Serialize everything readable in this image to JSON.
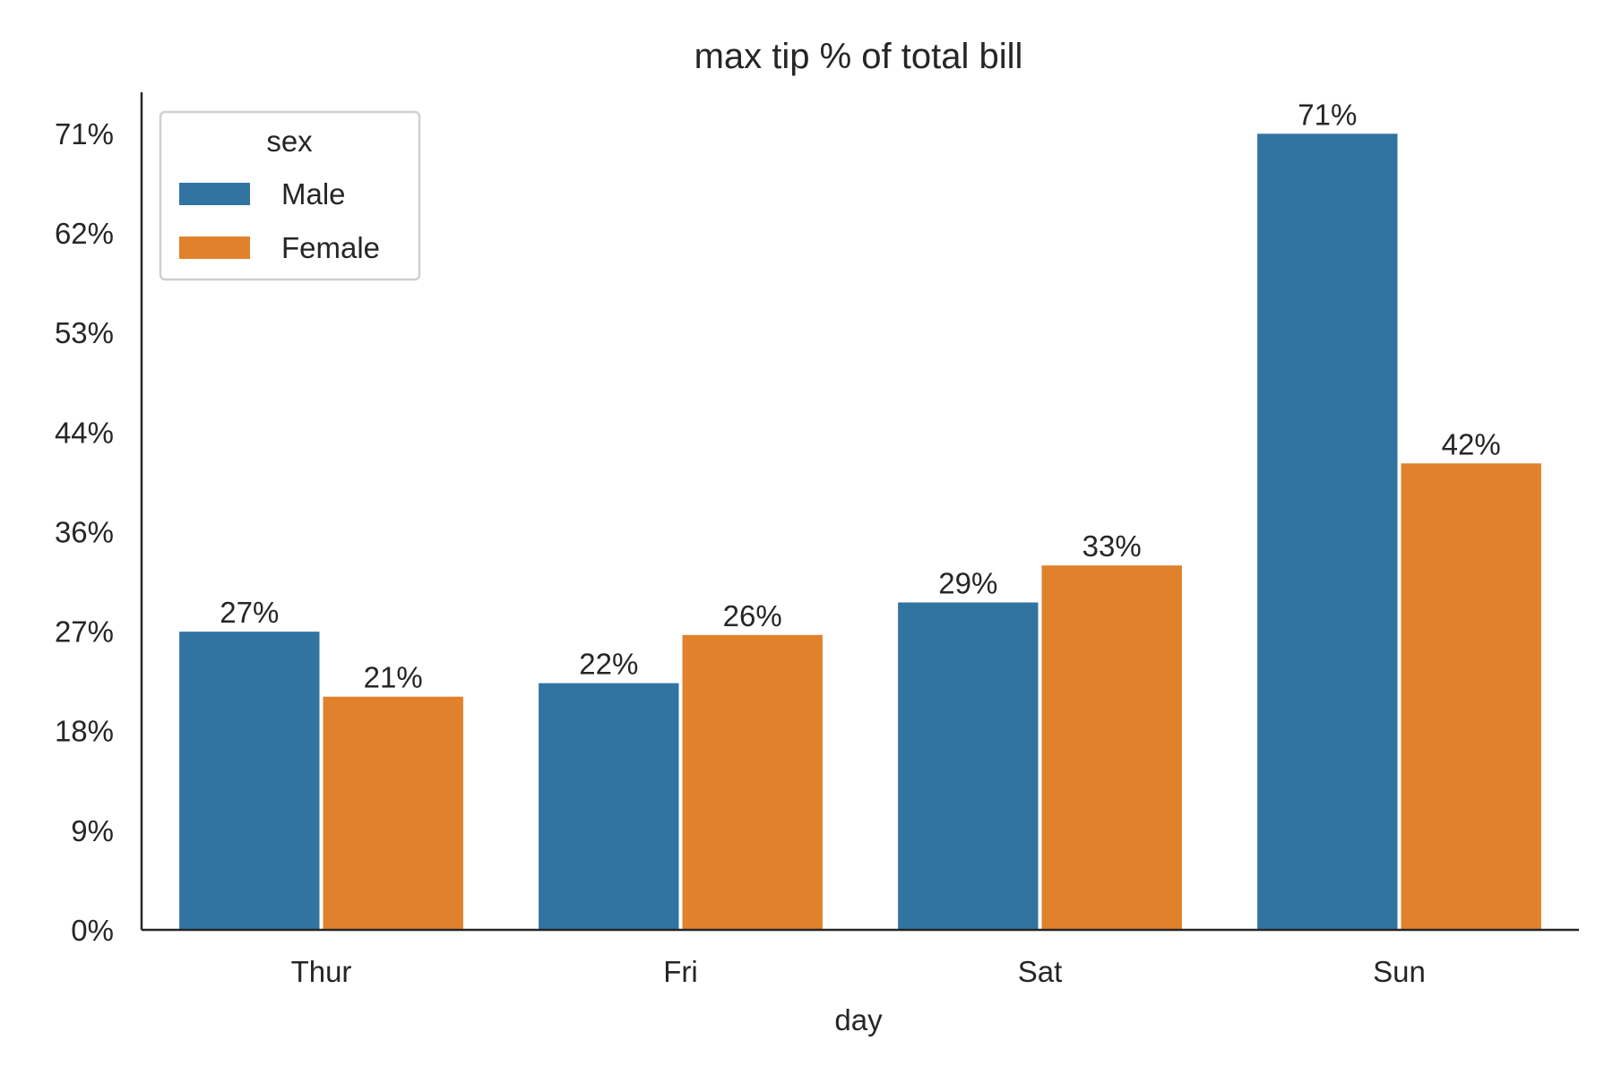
{
  "chart_data": {
    "type": "bar",
    "title": "max tip % of total bill",
    "xlabel": "day",
    "ylabel": "",
    "categories": [
      "Thur",
      "Fri",
      "Sat",
      "Sun"
    ],
    "series": [
      {
        "name": "Male",
        "color": "#3274a1",
        "values": [
          0.266,
          0.22,
          0.292,
          0.71
        ],
        "labels": [
          "27%",
          "22%",
          "29%",
          "71%"
        ]
      },
      {
        "name": "Female",
        "color": "#e1812c",
        "values": [
          0.208,
          0.263,
          0.325,
          0.416
        ],
        "labels": [
          "21%",
          "26%",
          "33%",
          "42%"
        ]
      }
    ],
    "ylim": [
      0,
      0.747
    ],
    "yticks": [
      0,
      0.0888,
      0.1776,
      0.2664,
      0.3552,
      0.444,
      0.5328,
      0.6216,
      0.7104
    ],
    "ytick_labels": [
      "0%",
      "9%",
      "18%",
      "27%",
      "36%",
      "44%",
      "53%",
      "62%",
      "71%"
    ],
    "legend": {
      "title": "sex",
      "position": "top-left"
    },
    "grid": false
  }
}
